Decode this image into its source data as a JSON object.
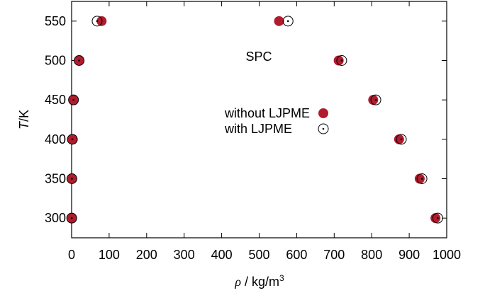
{
  "chart_data": {
    "type": "scatter",
    "title": "",
    "annotation": "SPC",
    "xlabel": {
      "symbol": "ρ",
      "unit_prefix": " / kg/m",
      "unit_exp": "3"
    },
    "ylabel": {
      "symbol": "T",
      "unit": "/K"
    },
    "xlim": [
      0,
      1000
    ],
    "ylim": [
      275,
      575
    ],
    "x_ticks": [
      "0",
      "100",
      "200",
      "300",
      "400",
      "500",
      "600",
      "700",
      "800",
      "900",
      "1000"
    ],
    "y_ticks": [
      "300",
      "350",
      "400",
      "450",
      "500",
      "550"
    ],
    "grid": false,
    "legend_position": "center",
    "series": [
      {
        "name": "without LJPME",
        "marker": "filled-circle",
        "color": "#b01c2e",
        "points": [
          [
            0.3,
            300
          ],
          [
            970,
            300
          ],
          [
            0.7,
            350
          ],
          [
            928,
            350
          ],
          [
            2,
            400
          ],
          [
            873,
            400
          ],
          [
            5,
            450
          ],
          [
            804,
            450
          ],
          [
            20,
            500
          ],
          [
            712,
            500
          ],
          [
            80,
            550
          ],
          [
            553,
            550
          ]
        ]
      },
      {
        "name": "with LJPME",
        "marker": "open-circle-dot",
        "color": "#000000",
        "points": [
          [
            0.3,
            300
          ],
          [
            976,
            300
          ],
          [
            0.7,
            350
          ],
          [
            934,
            350
          ],
          [
            2,
            400
          ],
          [
            879,
            400
          ],
          [
            5,
            450
          ],
          [
            811,
            450
          ],
          [
            20,
            500
          ],
          [
            720,
            500
          ],
          [
            68,
            550
          ],
          [
            577,
            550
          ]
        ]
      }
    ]
  }
}
